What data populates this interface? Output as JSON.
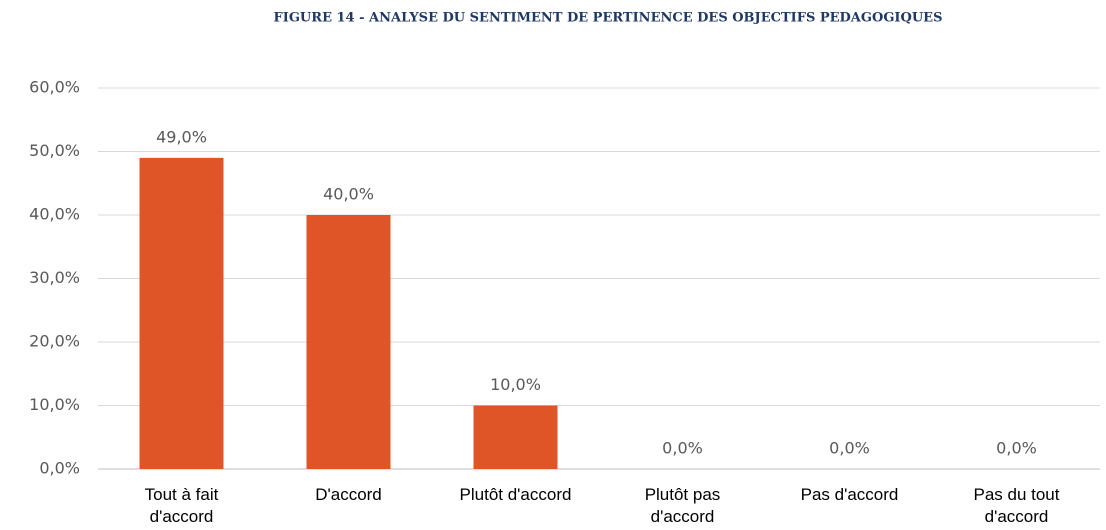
{
  "chart_data": {
    "type": "bar",
    "title": "FIGURE 14 - ANALYSE DU SENTIMENT DE PERTINENCE DES OBJECTIFS PEDAGOGIQUES",
    "categories": [
      "Tout à fait d'accord",
      "D'accord",
      "Plutôt d'accord",
      "Plutôt pas d'accord",
      "Pas d'accord",
      "Pas du tout d'accord"
    ],
    "values": [
      49,
      40,
      10,
      0,
      0,
      0
    ],
    "value_labels": [
      "49,0%",
      "40,0%",
      "10,0%",
      "0,0%",
      "0,0%",
      "0,0%"
    ],
    "color": "#e05528",
    "ylim": [
      0,
      60
    ],
    "yticks": [
      {
        "value": 0,
        "label": "0,0%"
      },
      {
        "value": 10,
        "label": "10,0%"
      },
      {
        "value": 20,
        "label": "20,0%"
      },
      {
        "value": 30,
        "label": "30,0%"
      },
      {
        "value": 40,
        "label": "40,0%"
      },
      {
        "value": 50,
        "label": "50,0%"
      },
      {
        "value": 60,
        "label": "60,0%"
      }
    ],
    "grid": true
  }
}
